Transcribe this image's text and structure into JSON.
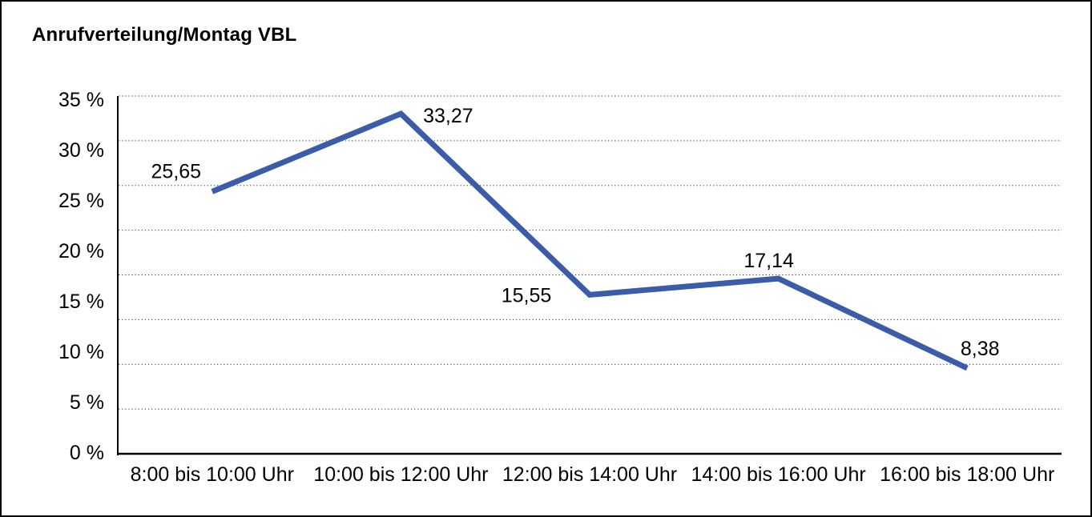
{
  "chart_data": {
    "type": "line",
    "title": "Anrufverteilung/Montag VBL",
    "categories": [
      "8:00 bis 10:00 Uhr",
      "10:00 bis 12:00 Uhr",
      "12:00 bis 14:00 Uhr",
      "14:00 bis 16:00 Uhr",
      "16:00 bis 18:00 Uhr"
    ],
    "values": [
      25.65,
      33.27,
      15.55,
      17.14,
      8.38
    ],
    "value_labels": [
      "25,65",
      "33,27",
      "15,55",
      "17,14",
      "8,38"
    ],
    "y_tick_labels": [
      "35 %",
      "30 %",
      "25 %",
      "20 %",
      "15 %",
      "10 %",
      "5 %",
      "0 %"
    ],
    "ylim": [
      0,
      35
    ],
    "xlabel": "",
    "ylabel": "",
    "grid": true,
    "gridline_style": "dotted",
    "legend": "none",
    "line_color": "#3B5CA8",
    "axis_color": "#000000",
    "label_decimal_separator": ","
  }
}
